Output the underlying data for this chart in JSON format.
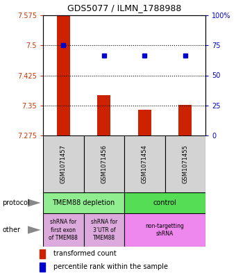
{
  "title": "GDS5077 / ILMN_1788988",
  "samples": [
    "GSM1071457",
    "GSM1071456",
    "GSM1071454",
    "GSM1071455"
  ],
  "bar_values": [
    7.575,
    7.375,
    7.34,
    7.352
  ],
  "bar_base": 7.275,
  "blue_values": [
    7.5,
    7.475,
    7.475,
    7.475
  ],
  "ylim_left": [
    7.275,
    7.575
  ],
  "yticks_left": [
    7.275,
    7.35,
    7.425,
    7.5,
    7.575
  ],
  "yticks_right": [
    0,
    25,
    50,
    75,
    100
  ],
  "hlines": [
    7.35,
    7.425,
    7.5
  ],
  "bar_color": "#CC2200",
  "blue_color": "#0000CC",
  "label_color_left": "#CC3300",
  "label_color_right": "#0000CC",
  "sample_bg": "#D3D3D3",
  "proto1_color": "#90EE90",
  "proto2_color": "#55DD55",
  "other1_color": "#DDAADD",
  "other2_color": "#EE88EE",
  "proto1_label": "TMEM88 depletion",
  "proto2_label": "control",
  "other1a_label": "shRNA for\nfirst exon\nof TMEM88",
  "other1b_label": "shRNA for\n3’UTR of\nTMEM88",
  "other2_label": "non-targetting\nshRNA",
  "legend_red_label": "transformed count",
  "legend_blue_label": "percentile rank within the sample",
  "protocol_text": "protocol",
  "other_text": "other"
}
